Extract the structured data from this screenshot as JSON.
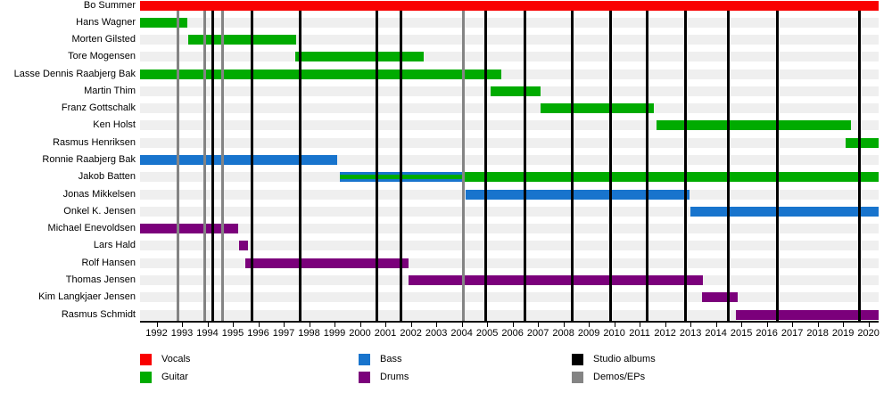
{
  "chart_data": {
    "type": "timeline",
    "description": "Band members timeline with studio album and demo/EP release lines",
    "x_axis": {
      "min_year": 1991.35,
      "max_year": 2020.4,
      "tick_years": [
        1992,
        1993,
        1994,
        1995,
        1996,
        1997,
        1998,
        1999,
        2000,
        2001,
        2002,
        2003,
        2004,
        2005,
        2006,
        2007,
        2008,
        2009,
        2010,
        2011,
        2012,
        2013,
        2014,
        2015,
        2016,
        2017,
        2018,
        2019,
        2020
      ]
    },
    "rows": [
      {
        "name": "Bo Summer",
        "bars": [
          {
            "role": "vocals",
            "start": 1991.35,
            "end": 2020.4
          }
        ]
      },
      {
        "name": "Hans Wagner",
        "bars": [
          {
            "role": "guitar",
            "start": 1991.35,
            "end": 1993.2
          }
        ]
      },
      {
        "name": "Morten Gilsted",
        "bars": [
          {
            "role": "guitar",
            "start": 1993.25,
            "end": 1997.5
          }
        ]
      },
      {
        "name": "Tore Mogensen",
        "bars": [
          {
            "role": "guitar",
            "start": 1997.45,
            "end": 2002.5
          }
        ]
      },
      {
        "name": "Lasse Dennis Raabjerg Bak",
        "bars": [
          {
            "role": "guitar",
            "start": 1991.35,
            "end": 2005.55
          }
        ]
      },
      {
        "name": "Martin Thim",
        "bars": [
          {
            "role": "guitar",
            "start": 2005.15,
            "end": 2007.1
          }
        ]
      },
      {
        "name": "Franz Gottschalk",
        "bars": [
          {
            "role": "guitar",
            "start": 2007.1,
            "end": 2011.55
          }
        ]
      },
      {
        "name": "Ken Holst",
        "bars": [
          {
            "role": "guitar",
            "start": 2011.65,
            "end": 2019.3
          }
        ]
      },
      {
        "name": "Rasmus Henriksen",
        "bars": [
          {
            "role": "guitar",
            "start": 2019.1,
            "end": 2020.4
          }
        ]
      },
      {
        "name": "Ronnie Raabjerg Bak",
        "bars": [
          {
            "role": "bass",
            "start": 1991.35,
            "end": 1999.1
          }
        ]
      },
      {
        "name": "Jakob Batten",
        "bars": [
          {
            "role": "bass",
            "start": 1999.2,
            "end": 2004.05
          },
          {
            "role": "guitar",
            "start": 1999.2,
            "end": 2004.05,
            "thin": true
          },
          {
            "role": "guitar",
            "start": 2004.05,
            "end": 2020.4
          }
        ]
      },
      {
        "name": "Jonas Mikkelsen",
        "bars": [
          {
            "role": "bass",
            "start": 2004.15,
            "end": 2012.95
          }
        ]
      },
      {
        "name": "Onkel K. Jensen",
        "bars": [
          {
            "role": "bass",
            "start": 2013.0,
            "end": 2020.4
          }
        ]
      },
      {
        "name": "Michael Enevoldsen",
        "bars": [
          {
            "role": "drums",
            "start": 1991.35,
            "end": 1995.2
          }
        ]
      },
      {
        "name": "Lars Hald",
        "bars": [
          {
            "role": "drums",
            "start": 1995.25,
            "end": 1995.6
          }
        ]
      },
      {
        "name": "Rolf Hansen",
        "bars": [
          {
            "role": "drums",
            "start": 1995.5,
            "end": 2001.9
          }
        ]
      },
      {
        "name": "Thomas Jensen",
        "bars": [
          {
            "role": "drums",
            "start": 2001.9,
            "end": 2013.5
          }
        ]
      },
      {
        "name": "Kim Langkjaer Jensen",
        "bars": [
          {
            "role": "drums",
            "start": 2013.45,
            "end": 2014.85
          }
        ]
      },
      {
        "name": "Rasmus Schmidt",
        "bars": [
          {
            "role": "drums",
            "start": 2014.8,
            "end": 2020.4
          }
        ]
      }
    ],
    "events": {
      "studio_albums": [
        1994.2,
        1995.75,
        1997.65,
        2000.65,
        2001.6,
        2004.95,
        2006.5,
        2008.35,
        2009.85,
        2011.3,
        2012.8,
        2014.5,
        2016.4,
        2019.65
      ],
      "demos_eps": [
        1992.85,
        1993.9,
        1994.6,
        2004.05
      ]
    },
    "colors": {
      "vocals": "#F90000",
      "guitar": "#00AB00",
      "bass": "#1874CD",
      "drums": "#7B007B",
      "studio_albums": "#000000",
      "demos_eps": "#848484",
      "track": "#efefef"
    },
    "legend": [
      {
        "label": "Vocals",
        "color_key": "vocals"
      },
      {
        "label": "Guitar",
        "color_key": "guitar"
      },
      {
        "label": "Bass",
        "color_key": "bass"
      },
      {
        "label": "Drums",
        "color_key": "drums"
      },
      {
        "label": "Studio albums",
        "color_key": "studio_albums"
      },
      {
        "label": "Demos/EPs",
        "color_key": "demos_eps"
      }
    ]
  }
}
